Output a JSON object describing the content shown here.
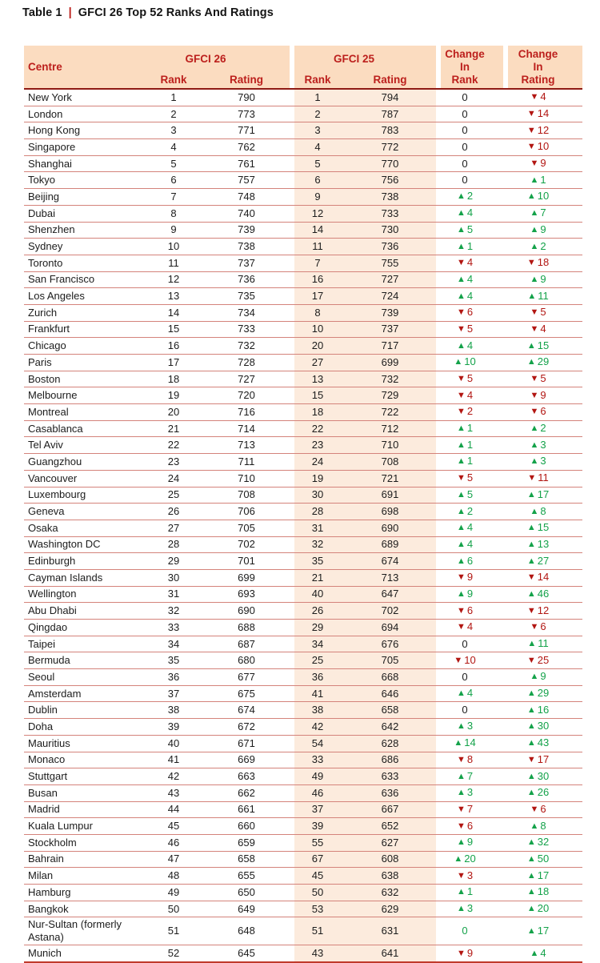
{
  "title": {
    "label": "Table 1",
    "sep": "|",
    "text": "GFCI 26 Top 52 Ranks And Ratings"
  },
  "icons": {
    "up": "▲",
    "down": "▼"
  },
  "colors": {
    "header_bg": "#fbdcc0",
    "stripe_bg": "#fcebdd",
    "header_text": "#bc1f1c",
    "up": "#14a24a",
    "down": "#b21612",
    "divider_line": "#d4837b",
    "heavy_line": "#8f1b14",
    "bottom_line": "#c03a2b"
  },
  "table": {
    "header": {
      "centre": "Centre",
      "gfci26": "GFCI 26",
      "gfci25": "GFCI 25",
      "rank": "Rank",
      "rating": "Rating",
      "change_in_rank": [
        "Change",
        "In",
        "Rank"
      ],
      "change_in_rating": [
        "Change",
        "In",
        "Rating"
      ]
    },
    "rows": [
      {
        "c": "New York",
        "r1": "1",
        "s1": "790",
        "r2": "1",
        "s2": "794",
        "cr": {
          "v": "0",
          "d": "zero"
        },
        "cs": {
          "v": "4",
          "d": "down"
        }
      },
      {
        "c": "London",
        "r1": "2",
        "s1": "773",
        "r2": "2",
        "s2": "787",
        "cr": {
          "v": "0",
          "d": "zero"
        },
        "cs": {
          "v": "14",
          "d": "down"
        }
      },
      {
        "c": "Hong Kong",
        "r1": "3",
        "s1": "771",
        "r2": "3",
        "s2": "783",
        "cr": {
          "v": "0",
          "d": "zero"
        },
        "cs": {
          "v": "12",
          "d": "down"
        }
      },
      {
        "c": "Singapore",
        "r1": "4",
        "s1": "762",
        "r2": "4",
        "s2": "772",
        "cr": {
          "v": "0",
          "d": "zero"
        },
        "cs": {
          "v": "10",
          "d": "down"
        }
      },
      {
        "c": "Shanghai",
        "r1": "5",
        "s1": "761",
        "r2": "5",
        "s2": "770",
        "cr": {
          "v": "0",
          "d": "zero"
        },
        "cs": {
          "v": "9",
          "d": "down"
        }
      },
      {
        "c": "Tokyo",
        "r1": "6",
        "s1": "757",
        "r2": "6",
        "s2": "756",
        "cr": {
          "v": "0",
          "d": "zero"
        },
        "cs": {
          "v": "1",
          "d": "up"
        }
      },
      {
        "c": "Beijing",
        "r1": "7",
        "s1": "748",
        "r2": "9",
        "s2": "738",
        "cr": {
          "v": "2",
          "d": "up"
        },
        "cs": {
          "v": "10",
          "d": "up"
        }
      },
      {
        "c": "Dubai",
        "r1": "8",
        "s1": "740",
        "r2": "12",
        "s2": "733",
        "cr": {
          "v": "4",
          "d": "up"
        },
        "cs": {
          "v": "7",
          "d": "up"
        }
      },
      {
        "c": "Shenzhen",
        "r1": "9",
        "s1": "739",
        "r2": "14",
        "s2": "730",
        "cr": {
          "v": "5",
          "d": "up"
        },
        "cs": {
          "v": "9",
          "d": "up"
        }
      },
      {
        "c": "Sydney",
        "r1": "10",
        "s1": "738",
        "r2": "11",
        "s2": "736",
        "cr": {
          "v": "1",
          "d": "up"
        },
        "cs": {
          "v": "2",
          "d": "up"
        }
      },
      {
        "c": "Toronto",
        "r1": "11",
        "s1": "737",
        "r2": "7",
        "s2": "755",
        "cr": {
          "v": "4",
          "d": "down"
        },
        "cs": {
          "v": "18",
          "d": "down"
        }
      },
      {
        "c": "San Francisco",
        "r1": "12",
        "s1": "736",
        "r2": "16",
        "s2": "727",
        "cr": {
          "v": "4",
          "d": "up"
        },
        "cs": {
          "v": "9",
          "d": "up"
        }
      },
      {
        "c": "Los Angeles",
        "r1": "13",
        "s1": "735",
        "r2": "17",
        "s2": "724",
        "cr": {
          "v": "4",
          "d": "up"
        },
        "cs": {
          "v": "11",
          "d": "up"
        }
      },
      {
        "c": "Zurich",
        "r1": "14",
        "s1": "734",
        "r2": "8",
        "s2": "739",
        "cr": {
          "v": "6",
          "d": "down"
        },
        "cs": {
          "v": "5",
          "d": "down"
        }
      },
      {
        "c": "Frankfurt",
        "r1": "15",
        "s1": "733",
        "r2": "10",
        "s2": "737",
        "cr": {
          "v": "5",
          "d": "down"
        },
        "cs": {
          "v": "4",
          "d": "down"
        }
      },
      {
        "c": "Chicago",
        "r1": "16",
        "s1": "732",
        "r2": "20",
        "s2": "717",
        "cr": {
          "v": "4",
          "d": "up"
        },
        "cs": {
          "v": "15",
          "d": "up"
        }
      },
      {
        "c": "Paris",
        "r1": "17",
        "s1": "728",
        "r2": "27",
        "s2": "699",
        "cr": {
          "v": "10",
          "d": "up"
        },
        "cs": {
          "v": "29",
          "d": "up"
        }
      },
      {
        "c": "Boston",
        "r1": "18",
        "s1": "727",
        "r2": "13",
        "s2": "732",
        "cr": {
          "v": "5",
          "d": "down"
        },
        "cs": {
          "v": "5",
          "d": "down"
        }
      },
      {
        "c": "Melbourne",
        "r1": "19",
        "s1": "720",
        "r2": "15",
        "s2": "729",
        "cr": {
          "v": "4",
          "d": "down"
        },
        "cs": {
          "v": "9",
          "d": "down"
        }
      },
      {
        "c": "Montreal",
        "r1": "20",
        "s1": "716",
        "r2": "18",
        "s2": "722",
        "cr": {
          "v": "2",
          "d": "down"
        },
        "cs": {
          "v": "6",
          "d": "down"
        }
      },
      {
        "c": "Casablanca",
        "r1": "21",
        "s1": "714",
        "r2": "22",
        "s2": "712",
        "cr": {
          "v": "1",
          "d": "up"
        },
        "cs": {
          "v": "2",
          "d": "up"
        }
      },
      {
        "c": "Tel Aviv",
        "r1": "22",
        "s1": "713",
        "r2": "23",
        "s2": "710",
        "cr": {
          "v": "1",
          "d": "up"
        },
        "cs": {
          "v": "3",
          "d": "up"
        }
      },
      {
        "c": "Guangzhou",
        "r1": "23",
        "s1": "711",
        "r2": "24",
        "s2": "708",
        "cr": {
          "v": "1",
          "d": "up"
        },
        "cs": {
          "v": "3",
          "d": "up"
        }
      },
      {
        "c": "Vancouver",
        "r1": "24",
        "s1": "710",
        "r2": "19",
        "s2": "721",
        "cr": {
          "v": "5",
          "d": "down"
        },
        "cs": {
          "v": "11",
          "d": "down"
        }
      },
      {
        "c": "Luxembourg",
        "r1": "25",
        "s1": "708",
        "r2": "30",
        "s2": "691",
        "cr": {
          "v": "5",
          "d": "up"
        },
        "cs": {
          "v": "17",
          "d": "up"
        }
      },
      {
        "c": "Geneva",
        "r1": "26",
        "s1": "706",
        "r2": "28",
        "s2": "698",
        "cr": {
          "v": "2",
          "d": "up"
        },
        "cs": {
          "v": "8",
          "d": "up"
        }
      },
      {
        "c": "Osaka",
        "r1": "27",
        "s1": "705",
        "r2": "31",
        "s2": "690",
        "cr": {
          "v": "4",
          "d": "up"
        },
        "cs": {
          "v": "15",
          "d": "up"
        }
      },
      {
        "c": "Washington DC",
        "r1": "28",
        "s1": "702",
        "r2": "32",
        "s2": "689",
        "cr": {
          "v": "4",
          "d": "up"
        },
        "cs": {
          "v": "13",
          "d": "up"
        }
      },
      {
        "c": "Edinburgh",
        "r1": "29",
        "s1": "701",
        "r2": "35",
        "s2": "674",
        "cr": {
          "v": "6",
          "d": "up"
        },
        "cs": {
          "v": "27",
          "d": "up"
        }
      },
      {
        "c": "Cayman Islands",
        "r1": "30",
        "s1": "699",
        "r2": "21",
        "s2": "713",
        "cr": {
          "v": "9",
          "d": "down"
        },
        "cs": {
          "v": "14",
          "d": "down"
        }
      },
      {
        "c": "Wellington",
        "r1": "31",
        "s1": "693",
        "r2": "40",
        "s2": "647",
        "cr": {
          "v": "9",
          "d": "up"
        },
        "cs": {
          "v": "46",
          "d": "up"
        }
      },
      {
        "c": "Abu Dhabi",
        "r1": "32",
        "s1": "690",
        "r2": "26",
        "s2": "702",
        "cr": {
          "v": "6",
          "d": "down"
        },
        "cs": {
          "v": "12",
          "d": "down"
        }
      },
      {
        "c": "Qingdao",
        "r1": "33",
        "s1": "688",
        "r2": "29",
        "s2": "694",
        "cr": {
          "v": "4",
          "d": "down"
        },
        "cs": {
          "v": "6",
          "d": "down"
        }
      },
      {
        "c": "Taipei",
        "r1": "34",
        "s1": "687",
        "r2": "34",
        "s2": "676",
        "cr": {
          "v": "0",
          "d": "zero"
        },
        "cs": {
          "v": "11",
          "d": "up"
        }
      },
      {
        "c": "Bermuda",
        "r1": "35",
        "s1": "680",
        "r2": "25",
        "s2": "705",
        "cr": {
          "v": "10",
          "d": "down"
        },
        "cs": {
          "v": "25",
          "d": "down"
        }
      },
      {
        "c": "Seoul",
        "r1": "36",
        "s1": "677",
        "r2": "36",
        "s2": "668",
        "cr": {
          "v": "0",
          "d": "zero"
        },
        "cs": {
          "v": "9",
          "d": "up"
        }
      },
      {
        "c": "Amsterdam",
        "r1": "37",
        "s1": "675",
        "r2": "41",
        "s2": "646",
        "cr": {
          "v": "4",
          "d": "up"
        },
        "cs": {
          "v": "29",
          "d": "up"
        }
      },
      {
        "c": "Dublin",
        "r1": "38",
        "s1": "674",
        "r2": "38",
        "s2": "658",
        "cr": {
          "v": "0",
          "d": "zero"
        },
        "cs": {
          "v": "16",
          "d": "up"
        }
      },
      {
        "c": "Doha",
        "r1": "39",
        "s1": "672",
        "r2": "42",
        "s2": "642",
        "cr": {
          "v": "3",
          "d": "up"
        },
        "cs": {
          "v": "30",
          "d": "up"
        }
      },
      {
        "c": "Mauritius",
        "r1": "40",
        "s1": "671",
        "r2": "54",
        "s2": "628",
        "cr": {
          "v": "14",
          "d": "up"
        },
        "cs": {
          "v": "43",
          "d": "up"
        }
      },
      {
        "c": "Monaco",
        "r1": "41",
        "s1": "669",
        "r2": "33",
        "s2": "686",
        "cr": {
          "v": "8",
          "d": "down"
        },
        "cs": {
          "v": "17",
          "d": "down"
        }
      },
      {
        "c": "Stuttgart",
        "r1": "42",
        "s1": "663",
        "r2": "49",
        "s2": "633",
        "cr": {
          "v": "7",
          "d": "up"
        },
        "cs": {
          "v": "30",
          "d": "up"
        }
      },
      {
        "c": "Busan",
        "r1": "43",
        "s1": "662",
        "r2": "46",
        "s2": "636",
        "cr": {
          "v": "3",
          "d": "up"
        },
        "cs": {
          "v": "26",
          "d": "up"
        }
      },
      {
        "c": "Madrid",
        "r1": "44",
        "s1": "661",
        "r2": "37",
        "s2": "667",
        "cr": {
          "v": "7",
          "d": "down"
        },
        "cs": {
          "v": "6",
          "d": "down"
        }
      },
      {
        "c": "Kuala Lumpur",
        "r1": "45",
        "s1": "660",
        "r2": "39",
        "s2": "652",
        "cr": {
          "v": "6",
          "d": "down"
        },
        "cs": {
          "v": "8",
          "d": "up"
        }
      },
      {
        "c": "Stockholm",
        "r1": "46",
        "s1": "659",
        "r2": "55",
        "s2": "627",
        "cr": {
          "v": "9",
          "d": "up"
        },
        "cs": {
          "v": "32",
          "d": "up"
        }
      },
      {
        "c": "Bahrain",
        "r1": "47",
        "s1": "658",
        "r2": "67",
        "s2": "608",
        "cr": {
          "v": "20",
          "d": "up"
        },
        "cs": {
          "v": "50",
          "d": "up"
        }
      },
      {
        "c": "Milan",
        "r1": "48",
        "s1": "655",
        "r2": "45",
        "s2": "638",
        "cr": {
          "v": "3",
          "d": "down"
        },
        "cs": {
          "v": "17",
          "d": "up"
        }
      },
      {
        "c": "Hamburg",
        "r1": "49",
        "s1": "650",
        "r2": "50",
        "s2": "632",
        "cr": {
          "v": "1",
          "d": "up"
        },
        "cs": {
          "v": "18",
          "d": "up"
        }
      },
      {
        "c": "Bangkok",
        "r1": "50",
        "s1": "649",
        "r2": "53",
        "s2": "629",
        "cr": {
          "v": "3",
          "d": "up"
        },
        "cs": {
          "v": "20",
          "d": "up"
        }
      },
      {
        "c": "Nur-Sultan (formerly Astana)",
        "r1": "51",
        "s1": "648",
        "r2": "51",
        "s2": "631",
        "cr": {
          "v": "0",
          "d": "zero-green"
        },
        "cs": {
          "v": "17",
          "d": "up"
        }
      },
      {
        "c": "Munich",
        "r1": "52",
        "s1": "645",
        "r2": "43",
        "s2": "641",
        "cr": {
          "v": "9",
          "d": "down"
        },
        "cs": {
          "v": "4",
          "d": "up"
        }
      }
    ]
  }
}
